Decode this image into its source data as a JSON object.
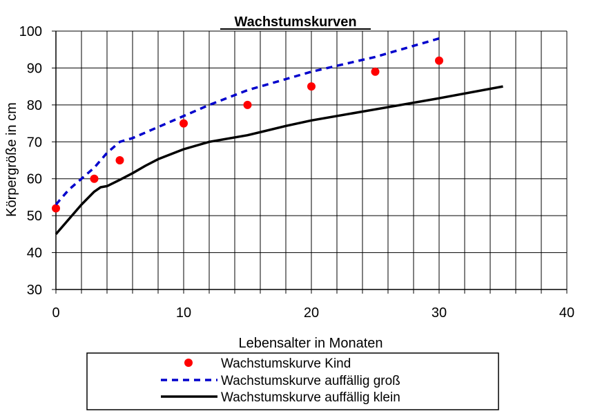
{
  "chart_data": {
    "type": "line",
    "title": "Wachstumskurven",
    "xlabel": "Lebensalter in Monaten",
    "ylabel": "Körpergröße in cm",
    "xlim": [
      0,
      40
    ],
    "ylim": [
      30,
      100
    ],
    "xticks": [
      0,
      10,
      20,
      30,
      40
    ],
    "yticks": [
      30,
      40,
      50,
      60,
      70,
      80,
      90,
      100
    ],
    "grid": true,
    "legend_position": "bottom",
    "series": [
      {
        "name": "Wachstumskurve Kind",
        "style": "markers",
        "color": "#ff0000",
        "x": [
          0,
          3,
          5,
          10,
          15,
          20,
          25,
          30
        ],
        "y": [
          52,
          60,
          65,
          75,
          80,
          85,
          89,
          92
        ]
      },
      {
        "name": "Wachstumskurve auffällig groß",
        "style": "dashed",
        "color": "#0000cc",
        "x": [
          0,
          1,
          2,
          3,
          4,
          5,
          6,
          8,
          10,
          12,
          15,
          18,
          20,
          25,
          30
        ],
        "y": [
          53,
          57,
          60,
          63,
          67,
          70,
          71,
          74,
          77,
          80,
          84,
          87,
          89,
          93,
          98
        ]
      },
      {
        "name": "Wachstumskurve auffällig klein",
        "style": "solid",
        "color": "#000000",
        "x": [
          0,
          1,
          2,
          3,
          3.5,
          4,
          5,
          6,
          7,
          8,
          10,
          12,
          15,
          18,
          20,
          25,
          30,
          35
        ],
        "y": [
          45,
          49,
          53,
          56.5,
          57.7,
          58,
          59.7,
          61.5,
          63.5,
          65.3,
          68,
          70,
          71.8,
          74.3,
          75.8,
          78.8,
          81.8,
          85
        ]
      }
    ]
  }
}
